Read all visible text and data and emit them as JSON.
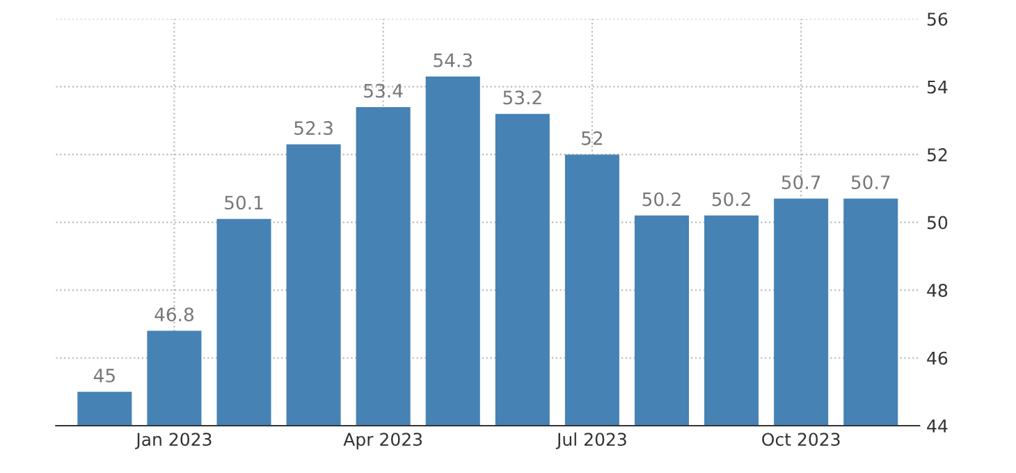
{
  "chart_data": {
    "type": "bar",
    "categories": [
      null,
      "Jan 2023",
      null,
      null,
      "Apr 2023",
      null,
      null,
      "Jul 2023",
      null,
      null,
      "Oct 2023",
      null
    ],
    "values": [
      45,
      46.8,
      50.1,
      52.3,
      53.4,
      54.3,
      53.2,
      52,
      50.2,
      50.2,
      50.7,
      50.7
    ],
    "color": "#4682b4",
    "ylim": [
      44,
      56
    ],
    "yticks": [
      44,
      46,
      48,
      50,
      52,
      54,
      56
    ],
    "grid": true,
    "data_labels": true
  }
}
